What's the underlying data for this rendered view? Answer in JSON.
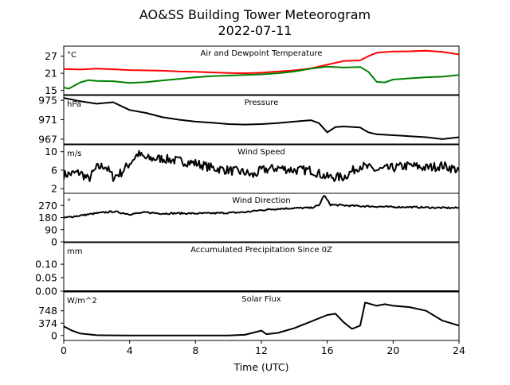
{
  "chart_data": {
    "title": "AO&SS Building Tower Meteorogram",
    "subtitle": "2022-07-11",
    "xlabel": "Time (UTC)",
    "xlim": [
      0,
      24
    ],
    "xticks": [
      0,
      4,
      8,
      12,
      16,
      20,
      24
    ],
    "panels": [
      {
        "id": "temp",
        "type": "line",
        "title": "Air and Dewpoint Temperature",
        "unit": "°C",
        "ylim": [
          13.5,
          30.5
        ],
        "yticks": [
          15,
          21,
          27
        ],
        "series": [
          {
            "color": "#ff0000",
            "points": [
              [
                0,
                22.5
              ],
              [
                1,
                22.3
              ],
              [
                2,
                22.6
              ],
              [
                3,
                22.4
              ],
              [
                4,
                22.1
              ],
              [
                5,
                22.0
              ],
              [
                6,
                21.9
              ],
              [
                7,
                21.6
              ],
              [
                8,
                21.5
              ],
              [
                9,
                21.3
              ],
              [
                10,
                21.1
              ],
              [
                11,
                21.0
              ],
              [
                12,
                21.2
              ],
              [
                13,
                21.6
              ],
              [
                14,
                22.0
              ],
              [
                15,
                22.7
              ],
              [
                16,
                24.0
              ],
              [
                17,
                25.3
              ],
              [
                18,
                25.5
              ],
              [
                18.5,
                27.0
              ],
              [
                19,
                28.2
              ],
              [
                20,
                28.6
              ],
              [
                21,
                28.7
              ],
              [
                22,
                28.9
              ],
              [
                23,
                28.5
              ],
              [
                24,
                27.6
              ]
            ]
          },
          {
            "color": "#008000",
            "points": [
              [
                0,
                16.0
              ],
              [
                0.3,
                15.6
              ],
              [
                1,
                17.8
              ],
              [
                1.5,
                18.6
              ],
              [
                2,
                18.3
              ],
              [
                3,
                18.2
              ],
              [
                4,
                17.6
              ],
              [
                5,
                17.9
              ],
              [
                6,
                18.5
              ],
              [
                7,
                19.0
              ],
              [
                8,
                19.6
              ],
              [
                9,
                20.0
              ],
              [
                10,
                20.2
              ],
              [
                11,
                20.4
              ],
              [
                12,
                20.6
              ],
              [
                13,
                21.0
              ],
              [
                14,
                21.6
              ],
              [
                15,
                22.6
              ],
              [
                16,
                23.3
              ],
              [
                17,
                23.0
              ],
              [
                18,
                23.2
              ],
              [
                18.5,
                21.5
              ],
              [
                19,
                18.0
              ],
              [
                19.5,
                17.8
              ],
              [
                20,
                18.8
              ],
              [
                21,
                19.2
              ],
              [
                22,
                19.6
              ],
              [
                23,
                19.8
              ],
              [
                24,
                20.4
              ]
            ]
          }
        ]
      },
      {
        "id": "pressure",
        "type": "line",
        "title": "Pressure",
        "unit": "hPa",
        "ylim": [
          966.0,
          976.0
        ],
        "yticks": [
          967,
          971,
          975
        ],
        "series": [
          {
            "color": "#000000",
            "points": [
              [
                0,
                975.5
              ],
              [
                1,
                974.8
              ],
              [
                2,
                974.3
              ],
              [
                3,
                974.6
              ],
              [
                4,
                973.0
              ],
              [
                5,
                972.4
              ],
              [
                6,
                971.5
              ],
              [
                7,
                971.0
              ],
              [
                8,
                970.6
              ],
              [
                9,
                970.4
              ],
              [
                10,
                970.1
              ],
              [
                11,
                970.0
              ],
              [
                12,
                970.1
              ],
              [
                13,
                970.3
              ],
              [
                14,
                970.6
              ],
              [
                15,
                970.9
              ],
              [
                15.5,
                970.3
              ],
              [
                16,
                968.4
              ],
              [
                16.5,
                969.5
              ],
              [
                17,
                969.6
              ],
              [
                18,
                969.4
              ],
              [
                18.5,
                968.4
              ],
              [
                19,
                968.0
              ],
              [
                20,
                967.8
              ],
              [
                21,
                967.6
              ],
              [
                22,
                967.4
              ],
              [
                23,
                967.0
              ],
              [
                24,
                967.4
              ]
            ]
          }
        ]
      },
      {
        "id": "wind_speed",
        "type": "line",
        "title": "Wind Speed",
        "unit": "m/s",
        "ylim": [
          1.0,
          11.5
        ],
        "yticks": [
          2,
          6,
          10
        ],
        "series": [
          {
            "color": "#000000",
            "noise": 1.0,
            "points": [
              [
                0,
                5.0
              ],
              [
                1,
                5.5
              ],
              [
                1.5,
                4.0
              ],
              [
                2,
                6.5
              ],
              [
                2.5,
                7.0
              ],
              [
                3,
                4.5
              ],
              [
                3.5,
                5.5
              ],
              [
                4,
                7.5
              ],
              [
                4.5,
                9.5
              ],
              [
                5,
                8.5
              ],
              [
                6,
                8.5
              ],
              [
                7,
                8.0
              ],
              [
                8,
                7.5
              ],
              [
                9,
                6.5
              ],
              [
                10,
                6.0
              ],
              [
                11,
                5.5
              ],
              [
                11.5,
                4.8
              ],
              [
                12,
                6.0
              ],
              [
                13,
                6.5
              ],
              [
                14,
                6.0
              ],
              [
                15,
                6.0
              ],
              [
                16,
                4.5
              ],
              [
                17,
                4.5
              ],
              [
                18,
                7.0
              ],
              [
                19,
                6.0
              ],
              [
                20,
                6.5
              ],
              [
                21,
                7.0
              ],
              [
                22,
                6.5
              ],
              [
                23,
                7.0
              ],
              [
                24,
                6.0
              ]
            ]
          }
        ]
      },
      {
        "id": "wind_dir",
        "type": "line",
        "title": "Wind Direction",
        "unit": "°",
        "ylim": [
          0,
          360
        ],
        "yticks": [
          0,
          90,
          180,
          270
        ],
        "series": [
          {
            "color": "#000000",
            "noise": 6,
            "points": [
              [
                0,
                178
              ],
              [
                1,
                195
              ],
              [
                2,
                212
              ],
              [
                3,
                225
              ],
              [
                4,
                205
              ],
              [
                5,
                218
              ],
              [
                6,
                210
              ],
              [
                7,
                212
              ],
              [
                8,
                210
              ],
              [
                9,
                212
              ],
              [
                10,
                215
              ],
              [
                11,
                220
              ],
              [
                12,
                235
              ],
              [
                13,
                245
              ],
              [
                14,
                250
              ],
              [
                15,
                252
              ],
              [
                15.5,
                270
              ],
              [
                15.8,
                345
              ],
              [
                16.2,
                275
              ],
              [
                17,
                270
              ],
              [
                18,
                265
              ],
              [
                19,
                262
              ],
              [
                20,
                258
              ],
              [
                21,
                258
              ],
              [
                22,
                255
              ],
              [
                23,
                252
              ],
              [
                24,
                252
              ]
            ]
          }
        ]
      },
      {
        "id": "precip",
        "type": "line",
        "title": "Accumulated Precipitation Since 0Z",
        "unit": "mm",
        "ylim": [
          0,
          0.18
        ],
        "yticks": [
          0.0,
          0.05,
          0.1
        ],
        "ytick_labels": [
          "0.00",
          "0.05",
          "0.10"
        ],
        "series": [
          {
            "color": "#000000",
            "points": [
              [
                0,
                0.0
              ],
              [
                24,
                0.0
              ]
            ]
          }
        ]
      },
      {
        "id": "solar",
        "type": "line",
        "title": "Solar Flux",
        "unit": "W/m^2",
        "ylim": [
          -150,
          1320
        ],
        "yticks": [
          0,
          374,
          748
        ],
        "series": [
          {
            "color": "#000000",
            "points": [
              [
                0,
                280
              ],
              [
                0.5,
                150
              ],
              [
                1,
                60
              ],
              [
                2,
                10
              ],
              [
                4,
                0
              ],
              [
                6,
                0
              ],
              [
                8,
                0
              ],
              [
                10,
                0
              ],
              [
                11,
                20
              ],
              [
                12,
                150
              ],
              [
                12.3,
                40
              ],
              [
                13,
                80
              ],
              [
                14,
                220
              ],
              [
                15,
                420
              ],
              [
                16,
                620
              ],
              [
                16.5,
                660
              ],
              [
                17,
                400
              ],
              [
                17.5,
                200
              ],
              [
                18,
                300
              ],
              [
                18.3,
                1000
              ],
              [
                19,
                900
              ],
              [
                19.5,
                950
              ],
              [
                20,
                900
              ],
              [
                21,
                860
              ],
              [
                22,
                750
              ],
              [
                23,
                450
              ],
              [
                24,
                300
              ]
            ]
          }
        ]
      }
    ]
  }
}
